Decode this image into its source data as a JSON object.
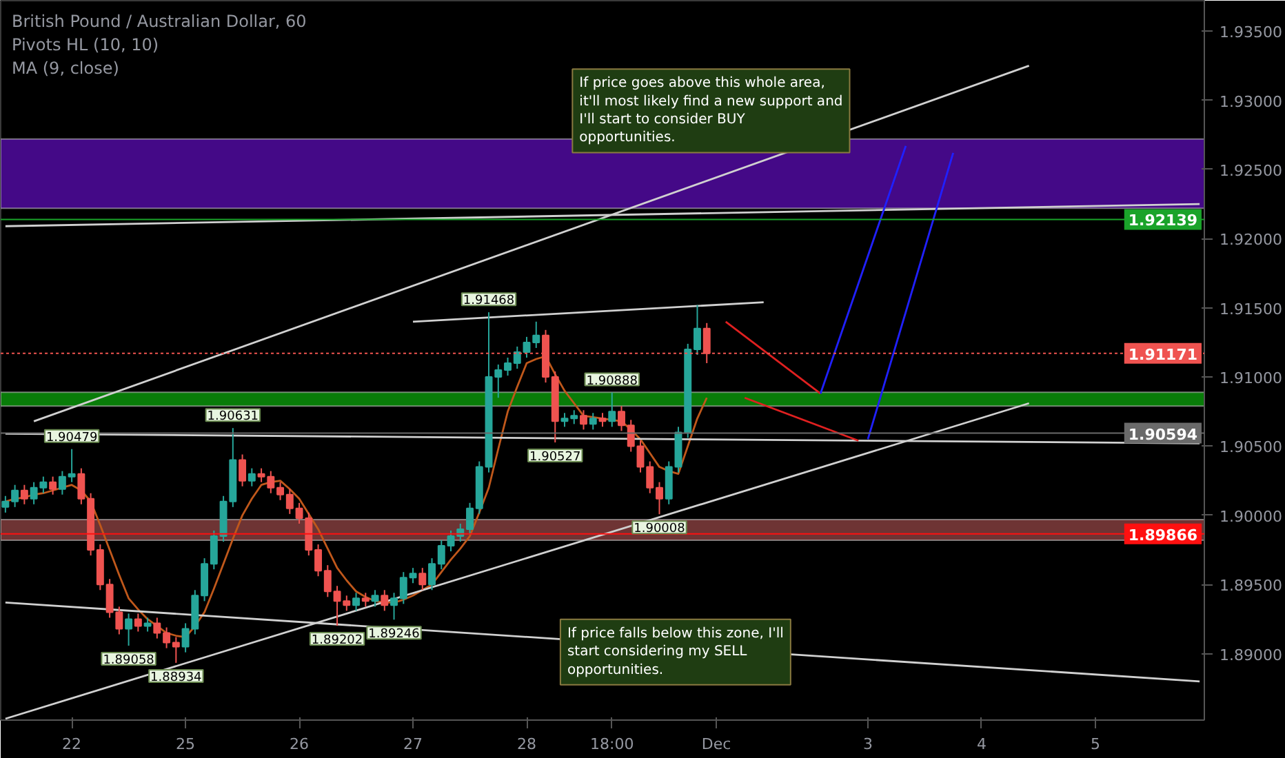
{
  "chart_data": {
    "type": "candlestick",
    "title": "British Pound / Australian Dollar, 60",
    "categories": [
      null,
      null,
      null,
      null,
      null,
      null,
      null,
      "22",
      null,
      null,
      null,
      null,
      null,
      null,
      null,
      null,
      null,
      null,
      null,
      "25",
      null,
      null,
      null,
      null,
      null,
      null,
      null,
      null,
      null,
      null,
      null,
      "26",
      null,
      null,
      null,
      null,
      null,
      null,
      null,
      null,
      null,
      null,
      null,
      "27",
      null,
      null,
      null,
      null,
      null,
      null,
      null,
      null,
      null,
      null,
      null,
      "28",
      null,
      null,
      null,
      null,
      null,
      null,
      null,
      null,
      "18:00",
      null,
      null,
      null,
      null,
      null,
      null,
      null,
      null,
      null,
      null,
      "Dec",
      null,
      null,
      null,
      null,
      null,
      null,
      null,
      null,
      null,
      null,
      null,
      null,
      null,
      null,
      null,
      "3",
      null,
      null,
      null,
      null,
      null,
      null,
      null,
      null,
      null,
      null,
      null,
      "4",
      null,
      null,
      null,
      null,
      null,
      null,
      null,
      null,
      null,
      null,
      null,
      "5",
      null,
      null,
      null,
      null,
      null,
      null,
      null,
      null,
      null,
      null,
      null
    ],
    "ohlc": [
      [
        1.9006,
        1.9014,
        1.9002,
        1.901
      ],
      [
        1.901,
        1.9022,
        1.9006,
        1.9018
      ],
      [
        1.9018,
        1.9022,
        1.9008,
        1.9012
      ],
      [
        1.9012,
        1.9024,
        1.9008,
        1.902
      ],
      [
        1.902,
        1.9028,
        1.9016,
        1.9024
      ],
      [
        1.9024,
        1.9028,
        1.9015,
        1.9019
      ],
      [
        1.9019,
        1.9032,
        1.9015,
        1.9028
      ],
      [
        1.9028,
        1.90479,
        1.9024,
        1.903
      ],
      [
        1.903,
        1.9034,
        1.9008,
        1.9012
      ],
      [
        1.9012,
        1.9016,
        1.8971,
        1.8975
      ],
      [
        1.8975,
        1.8979,
        1.8946,
        1.895
      ],
      [
        1.895,
        1.8954,
        1.8926,
        1.893
      ],
      [
        1.893,
        1.8934,
        1.8914,
        1.8918
      ],
      [
        1.8918,
        1.8929,
        1.89058,
        1.8925
      ],
      [
        1.8925,
        1.8929,
        1.8916,
        1.892
      ],
      [
        1.892,
        1.8926,
        1.8916,
        1.8922
      ],
      [
        1.8922,
        1.8926,
        1.8911,
        1.8915
      ],
      [
        1.8915,
        1.8919,
        1.8904,
        1.8908
      ],
      [
        1.8908,
        1.8912,
        1.88934,
        1.8905
      ],
      [
        1.8905,
        1.8922,
        1.8901,
        1.8918
      ],
      [
        1.8918,
        1.8946,
        1.8914,
        1.8942
      ],
      [
        1.8942,
        1.8969,
        1.8938,
        1.8965
      ],
      [
        1.8965,
        1.8989,
        1.8961,
        1.8985
      ],
      [
        1.8985,
        1.9014,
        1.8981,
        1.901
      ],
      [
        1.901,
        1.90631,
        1.9006,
        1.904
      ],
      [
        1.904,
        1.9044,
        1.9021,
        1.9025
      ],
      [
        1.9025,
        1.9034,
        1.9021,
        1.903
      ],
      [
        1.903,
        1.9034,
        1.9024,
        1.9028
      ],
      [
        1.9028,
        1.9032,
        1.9016,
        1.902
      ],
      [
        1.902,
        1.9024,
        1.9011,
        1.9015
      ],
      [
        1.9015,
        1.9019,
        1.9001,
        1.9005
      ],
      [
        1.9005,
        1.9009,
        1.8994,
        1.8998
      ],
      [
        1.8998,
        1.9002,
        1.8971,
        1.8975
      ],
      [
        1.8975,
        1.8979,
        1.8956,
        1.896
      ],
      [
        1.896,
        1.8964,
        1.8941,
        1.8945
      ],
      [
        1.8945,
        1.8949,
        1.89202,
        1.8938
      ],
      [
        1.8938,
        1.8942,
        1.8931,
        1.8935
      ],
      [
        1.8935,
        1.8944,
        1.8931,
        1.894
      ],
      [
        1.894,
        1.8944,
        1.8934,
        1.8938
      ],
      [
        1.8938,
        1.8946,
        1.8934,
        1.8942
      ],
      [
        1.8942,
        1.8946,
        1.8931,
        1.8935
      ],
      [
        1.8935,
        1.8944,
        1.89246,
        1.894
      ],
      [
        1.894,
        1.8959,
        1.8936,
        1.8955
      ],
      [
        1.8955,
        1.8962,
        1.8951,
        1.8958
      ],
      [
        1.8958,
        1.8962,
        1.8946,
        1.895
      ],
      [
        1.895,
        1.8969,
        1.8946,
        1.8965
      ],
      [
        1.8965,
        1.8982,
        1.8961,
        1.8978
      ],
      [
        1.8978,
        1.8989,
        1.8974,
        1.8985
      ],
      [
        1.8985,
        1.8994,
        1.8981,
        1.899
      ],
      [
        1.899,
        1.9009,
        1.8986,
        1.9005
      ],
      [
        1.9005,
        1.9039,
        1.9001,
        1.9035
      ],
      [
        1.9035,
        1.91468,
        1.9031,
        1.91
      ],
      [
        1.91,
        1.9109,
        1.9085,
        1.9105
      ],
      [
        1.9105,
        1.9114,
        1.9101,
        1.911
      ],
      [
        1.911,
        1.9122,
        1.9106,
        1.9118
      ],
      [
        1.9118,
        1.9129,
        1.9114,
        1.9125
      ],
      [
        1.9125,
        1.914,
        1.9121,
        1.913
      ],
      [
        1.913,
        1.9134,
        1.9096,
        1.91
      ],
      [
        1.91,
        1.9104,
        1.90527,
        1.9068
      ],
      [
        1.9068,
        1.9074,
        1.9064,
        1.907
      ],
      [
        1.907,
        1.9076,
        1.9066,
        1.9072
      ],
      [
        1.9072,
        1.9076,
        1.9062,
        1.9066
      ],
      [
        1.9066,
        1.9074,
        1.9062,
        1.907
      ],
      [
        1.907,
        1.9074,
        1.9064,
        1.9068
      ],
      [
        1.9068,
        1.90888,
        1.9064,
        1.9075
      ],
      [
        1.9075,
        1.9079,
        1.9061,
        1.9065
      ],
      [
        1.9065,
        1.9069,
        1.9046,
        1.905
      ],
      [
        1.905,
        1.9054,
        1.9031,
        1.9035
      ],
      [
        1.9035,
        1.9039,
        1.9016,
        1.902
      ],
      [
        1.902,
        1.9024,
        1.90008,
        1.9012
      ],
      [
        1.9012,
        1.9039,
        1.9008,
        1.9035
      ],
      [
        1.9035,
        1.9064,
        1.9031,
        1.906
      ],
      [
        1.906,
        1.9124,
        1.9056,
        1.912
      ],
      [
        1.912,
        1.9152,
        1.9116,
        1.9135
      ],
      [
        1.9135,
        1.9139,
        1.911,
        1.91171
      ],
      null,
      null,
      null,
      null,
      null,
      null,
      null,
      null,
      null,
      null,
      null,
      null,
      null,
      null,
      null,
      null,
      null,
      null,
      null,
      null,
      null,
      null,
      null,
      null,
      null,
      null,
      null,
      null,
      null,
      null,
      null,
      null,
      null,
      null,
      null,
      null,
      null,
      null,
      null,
      null,
      null,
      null,
      null,
      null,
      null,
      null,
      null,
      null,
      null,
      null,
      null,
      null
    ],
    "series": [
      {
        "type": "line",
        "color": "#c0581b",
        "values": [
          1.901,
          1.9012,
          1.9013,
          1.9015,
          1.9016,
          1.9018,
          1.902,
          1.9022,
          1.9018,
          1.901,
          1.8993,
          1.8975,
          1.8957,
          1.894,
          1.8932,
          1.8925,
          1.892,
          1.8915,
          1.8913,
          1.8912,
          1.892,
          1.893,
          1.8947,
          1.8965,
          1.8983,
          1.9,
          1.9012,
          1.9022,
          1.9024,
          1.9025,
          1.9019,
          1.9012,
          1.9001,
          1.899,
          1.8976,
          1.8962,
          1.8953,
          1.8945,
          1.8941,
          1.8938,
          1.8937,
          1.8937,
          1.8939,
          1.8942,
          1.8946,
          1.895,
          1.8959,
          1.8968,
          1.8976,
          1.8985,
          1.9002,
          1.902,
          1.9048,
          1.9075,
          1.9093,
          1.911,
          1.9113,
          1.9115,
          1.9102,
          1.909,
          1.9081,
          1.9072,
          1.9071,
          1.907,
          1.9069,
          1.9068,
          1.9062,
          1.9055,
          1.9045,
          1.9035,
          1.9032,
          1.903,
          1.905,
          1.907,
          1.9085,
          null,
          null,
          null,
          null,
          null,
          null,
          null,
          null,
          null,
          null,
          null,
          null,
          null,
          null,
          null,
          null,
          null,
          null,
          null,
          null,
          null,
          null,
          null,
          null,
          null,
          null,
          null,
          null,
          null,
          null,
          null,
          null,
          null,
          null,
          null,
          null,
          null,
          null,
          null,
          null,
          null,
          null,
          null,
          null,
          null,
          null,
          null,
          null,
          null,
          null,
          null,
          null
        ]
      },
      {
        "type": "line",
        "color": "#d0d0d0",
        "values": [
          null,
          null,
          null,
          1.9068,
          null,
          null,
          null,
          null,
          null,
          null,
          null,
          null,
          null,
          null,
          null,
          null,
          null,
          null,
          null,
          null,
          null,
          null,
          null,
          null,
          null,
          null,
          null,
          null,
          null,
          null,
          null,
          null,
          null,
          null,
          null,
          null,
          null,
          null,
          null,
          null,
          null,
          null,
          null,
          null,
          null,
          null,
          null,
          null,
          null,
          null,
          null,
          null,
          null,
          null,
          null,
          null,
          null,
          null,
          null,
          null,
          null,
          null,
          null,
          null,
          null,
          null,
          null,
          null,
          null,
          null,
          null,
          null,
          null,
          null,
          null,
          null,
          null,
          null,
          null,
          null,
          null,
          null,
          null,
          null,
          null,
          null,
          null,
          null,
          null,
          null,
          null,
          null,
          null,
          null,
          null,
          null,
          null,
          null,
          null,
          null,
          null,
          null,
          null,
          null,
          null,
          null,
          null,
          null,
          1.9325,
          null,
          null,
          null,
          null,
          null,
          null,
          null,
          null,
          null,
          null,
          null,
          null,
          null,
          null,
          null,
          null,
          null,
          null
        ]
      },
      {
        "type": "line",
        "color": "#d0d0d0",
        "values": [
          1.9209,
          null,
          null,
          null,
          null,
          null,
          null,
          null,
          null,
          null,
          null,
          null,
          null,
          null,
          null,
          null,
          null,
          null,
          null,
          null,
          null,
          null,
          null,
          null,
          null,
          null,
          null,
          null,
          null,
          null,
          null,
          null,
          null,
          null,
          null,
          null,
          null,
          null,
          null,
          null,
          null,
          null,
          null,
          null,
          null,
          null,
          null,
          null,
          null,
          null,
          null,
          null,
          null,
          null,
          null,
          null,
          null,
          null,
          null,
          null,
          null,
          null,
          null,
          null,
          null,
          null,
          null,
          null,
          null,
          null,
          null,
          null,
          null,
          null,
          null,
          null,
          null,
          null,
          null,
          null,
          null,
          null,
          null,
          null,
          null,
          null,
          null,
          null,
          null,
          null,
          null,
          null,
          null,
          null,
          null,
          null,
          null,
          null,
          null,
          null,
          null,
          null,
          null,
          null,
          null,
          null,
          null,
          null,
          null,
          null,
          null,
          null,
          null,
          null,
          null,
          null,
          null,
          null,
          null,
          null,
          null,
          null,
          null,
          null,
          null,
          null,
          1.9225
        ]
      },
      {
        "type": "line",
        "color": "#d0d0d0",
        "values": [
          null,
          null,
          null,
          null,
          null,
          null,
          null,
          null,
          null,
          null,
          null,
          null,
          null,
          null,
          null,
          null,
          null,
          null,
          null,
          null,
          null,
          null,
          null,
          null,
          null,
          null,
          null,
          null,
          null,
          null,
          null,
          null,
          null,
          null,
          null,
          null,
          null,
          null,
          null,
          null,
          null,
          null,
          null,
          1.914,
          null,
          null,
          null,
          null,
          null,
          null,
          null,
          null,
          null,
          null,
          null,
          null,
          null,
          null,
          null,
          null,
          null,
          null,
          null,
          null,
          null,
          null,
          null,
          null,
          null,
          null,
          null,
          null,
          null,
          null,
          null,
          null,
          null,
          null,
          null,
          null,
          1.9154,
          null,
          null,
          null,
          null,
          null,
          null,
          null,
          null,
          null,
          null,
          null,
          null,
          null,
          null,
          null,
          null,
          null,
          null,
          null,
          null,
          null,
          null,
          null,
          null,
          null,
          null,
          null,
          null,
          null,
          null,
          null,
          null,
          null,
          null,
          null,
          null,
          null,
          null,
          null,
          null,
          null,
          null,
          null,
          null,
          null,
          null
        ]
      },
      {
        "type": "line",
        "color": "#d0d0d0",
        "values": [
          1.9059,
          null,
          null,
          null,
          null,
          null,
          null,
          null,
          null,
          null,
          null,
          null,
          null,
          null,
          null,
          null,
          null,
          null,
          null,
          null,
          null,
          null,
          null,
          null,
          null,
          null,
          null,
          null,
          null,
          null,
          null,
          null,
          null,
          null,
          null,
          null,
          null,
          null,
          null,
          null,
          null,
          null,
          null,
          null,
          null,
          null,
          null,
          null,
          null,
          null,
          null,
          null,
          null,
          null,
          null,
          null,
          null,
          null,
          null,
          null,
          null,
          null,
          null,
          null,
          null,
          null,
          null,
          null,
          null,
          null,
          null,
          null,
          null,
          null,
          null,
          null,
          null,
          null,
          null,
          null,
          null,
          null,
          null,
          null,
          null,
          null,
          null,
          null,
          null,
          null,
          null,
          null,
          null,
          null,
          null,
          null,
          null,
          null,
          null,
          null,
          null,
          null,
          null,
          null,
          null,
          null,
          null,
          null,
          null,
          null,
          null,
          null,
          null,
          null,
          null,
          null,
          null,
          null,
          null,
          null,
          null,
          null,
          null,
          null,
          null,
          null,
          1.9052
        ]
      },
      {
        "type": "line",
        "color": "#d0d0d0",
        "values": [
          1.8937,
          null,
          null,
          null,
          null,
          null,
          null,
          null,
          null,
          null,
          null,
          null,
          null,
          null,
          null,
          null,
          null,
          null,
          null,
          null,
          null,
          null,
          null,
          null,
          null,
          null,
          null,
          null,
          null,
          null,
          null,
          null,
          null,
          null,
          null,
          null,
          null,
          null,
          null,
          null,
          null,
          null,
          null,
          null,
          null,
          null,
          null,
          null,
          null,
          null,
          null,
          null,
          null,
          null,
          null,
          null,
          null,
          null,
          null,
          null,
          null,
          null,
          null,
          null,
          null,
          null,
          null,
          null,
          null,
          null,
          null,
          null,
          null,
          null,
          null,
          null,
          null,
          null,
          null,
          null,
          null,
          null,
          null,
          null,
          null,
          null,
          null,
          null,
          null,
          null,
          null,
          null,
          null,
          null,
          null,
          null,
          null,
          null,
          null,
          null,
          null,
          null,
          null,
          null,
          null,
          null,
          null,
          null,
          null,
          null,
          null,
          null,
          null,
          null,
          null,
          null,
          null,
          null,
          null,
          null,
          null,
          null,
          null,
          null,
          null,
          null,
          1.888
        ]
      },
      {
        "type": "line",
        "color": "#d0d0d0",
        "values": [
          1.8853,
          null,
          null,
          null,
          null,
          null,
          null,
          null,
          null,
          null,
          null,
          null,
          null,
          null,
          null,
          null,
          null,
          null,
          null,
          null,
          null,
          null,
          null,
          null,
          null,
          null,
          null,
          null,
          null,
          null,
          null,
          null,
          null,
          null,
          null,
          null,
          null,
          null,
          null,
          null,
          null,
          null,
          null,
          null,
          null,
          null,
          null,
          null,
          null,
          null,
          null,
          null,
          null,
          null,
          null,
          null,
          null,
          null,
          null,
          null,
          null,
          null,
          null,
          null,
          null,
          null,
          null,
          null,
          null,
          null,
          null,
          null,
          null,
          null,
          null,
          null,
          null,
          null,
          null,
          null,
          null,
          null,
          null,
          null,
          null,
          null,
          null,
          null,
          null,
          null,
          null,
          null,
          null,
          null,
          null,
          null,
          null,
          null,
          null,
          null,
          null,
          null,
          null,
          null,
          null,
          null,
          null,
          null,
          1.9081,
          null,
          null,
          null,
          null,
          null,
          null,
          null,
          null,
          null,
          null,
          null,
          null,
          null,
          null,
          null,
          null,
          null,
          null
        ]
      },
      {
        "type": "line",
        "color": "#e02020",
        "values": [
          null,
          null,
          null,
          null,
          null,
          null,
          null,
          null,
          null,
          null,
          null,
          null,
          null,
          null,
          null,
          null,
          null,
          null,
          null,
          null,
          null,
          null,
          null,
          null,
          null,
          null,
          null,
          null,
          null,
          null,
          null,
          null,
          null,
          null,
          null,
          null,
          null,
          null,
          null,
          null,
          null,
          null,
          null,
          null,
          null,
          null,
          null,
          null,
          null,
          null,
          null,
          null,
          null,
          null,
          null,
          null,
          null,
          null,
          null,
          null,
          null,
          null,
          null,
          null,
          null,
          null,
          null,
          null,
          null,
          null,
          null,
          null,
          null,
          null,
          null,
          null,
          1.914,
          null,
          null,
          null,
          null,
          null,
          null,
          null,
          null,
          null,
          1.9088,
          null,
          null,
          null,
          null,
          null,
          null,
          null,
          null,
          null,
          null,
          null,
          null,
          null,
          null,
          null,
          null,
          null,
          null,
          null,
          null,
          null,
          null,
          null,
          null,
          null,
          null,
          null,
          null,
          null,
          null,
          null,
          null,
          null,
          null,
          null,
          null,
          null,
          null,
          null,
          null
        ]
      },
      {
        "type": "line",
        "color": "#e02020",
        "values": [
          null,
          null,
          null,
          null,
          null,
          null,
          null,
          null,
          null,
          null,
          null,
          null,
          null,
          null,
          null,
          null,
          null,
          null,
          null,
          null,
          null,
          null,
          null,
          null,
          null,
          null,
          null,
          null,
          null,
          null,
          null,
          null,
          null,
          null,
          null,
          null,
          null,
          null,
          null,
          null,
          null,
          null,
          null,
          null,
          null,
          null,
          null,
          null,
          null,
          null,
          null,
          null,
          null,
          null,
          null,
          null,
          null,
          null,
          null,
          null,
          null,
          null,
          null,
          null,
          null,
          null,
          null,
          null,
          null,
          null,
          null,
          null,
          null,
          null,
          null,
          null,
          null,
          null,
          1.9085,
          null,
          null,
          null,
          null,
          null,
          null,
          null,
          null,
          null,
          null,
          null,
          1.9054,
          null,
          null,
          null,
          null,
          null,
          null,
          null,
          null,
          null,
          null,
          null,
          null,
          null,
          null,
          null,
          null,
          null,
          null,
          null,
          null,
          null,
          null,
          null,
          null,
          null,
          null,
          null,
          null,
          null,
          null,
          null,
          null,
          null,
          null,
          null,
          null
        ]
      },
      {
        "type": "line",
        "color": "#2020ff",
        "values": [
          null,
          null,
          null,
          null,
          null,
          null,
          null,
          null,
          null,
          null,
          null,
          null,
          null,
          null,
          null,
          null,
          null,
          null,
          null,
          null,
          null,
          null,
          null,
          null,
          null,
          null,
          null,
          null,
          null,
          null,
          null,
          null,
          null,
          null,
          null,
          null,
          null,
          null,
          null,
          null,
          null,
          null,
          null,
          null,
          null,
          null,
          null,
          null,
          null,
          null,
          null,
          null,
          null,
          null,
          null,
          null,
          null,
          null,
          null,
          null,
          null,
          null,
          null,
          null,
          null,
          null,
          null,
          null,
          null,
          null,
          null,
          null,
          null,
          null,
          null,
          null,
          null,
          null,
          null,
          null,
          null,
          null,
          null,
          null,
          null,
          null,
          1.9088,
          null,
          null,
          null,
          null,
          null,
          null,
          null,
          null,
          1.9267,
          null,
          null,
          null,
          null,
          null,
          null,
          null,
          null,
          null,
          null,
          null,
          null,
          null,
          null,
          null,
          null,
          null,
          null,
          null,
          null,
          null,
          null,
          null,
          null,
          null,
          null,
          null,
          null,
          null,
          null,
          null
        ]
      },
      {
        "type": "line",
        "color": "#2020ff",
        "values": [
          null,
          null,
          null,
          null,
          null,
          null,
          null,
          null,
          null,
          null,
          null,
          null,
          null,
          null,
          null,
          null,
          null,
          null,
          null,
          null,
          null,
          null,
          null,
          null,
          null,
          null,
          null,
          null,
          null,
          null,
          null,
          null,
          null,
          null,
          null,
          null,
          null,
          null,
          null,
          null,
          null,
          null,
          null,
          null,
          null,
          null,
          null,
          null,
          null,
          null,
          null,
          null,
          null,
          null,
          null,
          null,
          null,
          null,
          null,
          null,
          null,
          null,
          null,
          null,
          null,
          null,
          null,
          null,
          null,
          null,
          null,
          null,
          null,
          null,
          null,
          null,
          null,
          null,
          null,
          null,
          null,
          null,
          null,
          null,
          null,
          null,
          null,
          null,
          null,
          null,
          null,
          1.9055,
          null,
          null,
          null,
          null,
          null,
          null,
          null,
          null,
          1.9262,
          null,
          null,
          null,
          null,
          null,
          null,
          null,
          null,
          null,
          null,
          null,
          null,
          null,
          null,
          null,
          null,
          null,
          null,
          null,
          null,
          null,
          null,
          null,
          null,
          null,
          null
        ]
      }
    ],
    "bands": [
      {
        "axis": "y",
        "from": 1.9222,
        "to": 1.9272,
        "color": "#4b0a96"
      },
      {
        "axis": "y",
        "from": 1.9079,
        "to": 1.9089,
        "color": "#0a8a0a"
      },
      {
        "axis": "y",
        "from": 1.8982,
        "to": 1.8997,
        "color": "#7a3a3a"
      }
    ],
    "ref_lines": [
      {
        "axis": "y",
        "value": 1.92139,
        "label": "1.92139",
        "color": "#1aa32a",
        "line_style": "solid"
      },
      {
        "axis": "y",
        "value": 1.91171,
        "label": "1.91171",
        "color": "#ef5350",
        "line_style": "dotted"
      },
      {
        "axis": "y",
        "value": 1.90594,
        "label": "1.90594",
        "color": "#6a6a6a",
        "line_style": "solid"
      },
      {
        "axis": "y",
        "value": 1.89866,
        "label": "1.89866",
        "color": "#ff1010",
        "line_style": "solid"
      }
    ],
    "annotations": [
      "Pivots HL (10, 10)",
      "MA (9, close)",
      {
        "text": "1.90479",
        "y": 1.90479
      },
      {
        "text": "1.89058",
        "y": 1.89058
      },
      {
        "text": "1.88934",
        "y": 1.88934
      },
      {
        "text": "1.90631",
        "y": 1.90631
      },
      {
        "text": "1.89202",
        "y": 1.89202
      },
      {
        "text": "1.89246",
        "y": 1.89246
      },
      {
        "text": "1.91468",
        "y": 1.91468
      },
      {
        "text": "1.90527",
        "y": 1.90527
      },
      {
        "text": "1.90888",
        "y": 1.90888
      },
      {
        "text": "1.90008",
        "y": 1.90008
      },
      "If price goes above this whole area,\nit'll most likely find a new support and\nI'll start to consider BUY\nopportunities.",
      "If price falls below this zone, I'll\nstart considering my SELL\nopportunities."
    ],
    "ylim": [
      1.8852,
      1.9372
    ],
    "yticks": [
      {
        "value": 1.89,
        "label": "1.89000"
      },
      {
        "value": 1.895,
        "label": "1.89500"
      },
      {
        "value": 1.9,
        "label": "1.90000"
      },
      {
        "value": 1.905,
        "label": "1.90500"
      },
      {
        "value": 1.91,
        "label": "1.91000"
      },
      {
        "value": 1.915,
        "label": "1.91500"
      },
      {
        "value": 1.92,
        "label": "1.92000"
      },
      {
        "value": 1.925,
        "label": "1.92500"
      },
      {
        "value": 1.93,
        "label": "1.93000"
      },
      {
        "value": 1.935,
        "label": "1.93500"
      }
    ],
    "grid": false
  }
}
